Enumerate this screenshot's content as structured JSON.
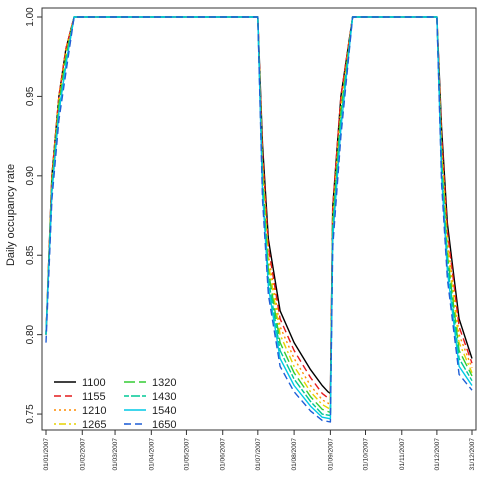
{
  "chart_data": {
    "type": "line",
    "title": "",
    "xlabel": "",
    "ylabel": "Daily occupancy rate",
    "ylim": [
      0.745,
      1.0
    ],
    "yticks": [
      0.75,
      0.8,
      0.85,
      0.9,
      0.95,
      1.0
    ],
    "ytick_labels": [
      "0.75",
      "0.80",
      "0.85",
      "0.90",
      "0.95",
      "1.00"
    ],
    "x_tick_labels": [
      "01/01/2007",
      "01/02/2007",
      "01/03/2007",
      "01/04/2007",
      "01/05/2007",
      "01/06/2007",
      "01/07/2007",
      "01/08/2007",
      "01/09/2007",
      "01/10/2007",
      "01/11/2007",
      "01/12/2007",
      "31/12/2007"
    ],
    "grid": false,
    "legend_position": "bottom-left",
    "series": [
      {
        "name": "1100",
        "color": "#000000",
        "dash": "solid",
        "points": [
          [
            "01/01/2007",
            0.8
          ],
          [
            "06/01/2007",
            0.9
          ],
          [
            "12/01/2007",
            0.95
          ],
          [
            "18/01/2007",
            0.98
          ],
          [
            "25/01/2007",
            1.0
          ],
          [
            "01/07/2007",
            1.0
          ],
          [
            "05/07/2007",
            0.92
          ],
          [
            "10/07/2007",
            0.86
          ],
          [
            "20/07/2007",
            0.815
          ],
          [
            "01/08/2007",
            0.795
          ],
          [
            "15/08/2007",
            0.778
          ],
          [
            "25/08/2007",
            0.768
          ],
          [
            "30/08/2007",
            0.764
          ],
          [
            "01/09/2007",
            0.763
          ],
          [
            "03/09/2007",
            0.88
          ],
          [
            "10/09/2007",
            0.95
          ],
          [
            "20/09/2007",
            1.0
          ],
          [
            "01/12/2007",
            1.0
          ],
          [
            "05/12/2007",
            0.93
          ],
          [
            "10/12/2007",
            0.87
          ],
          [
            "20/12/2007",
            0.81
          ],
          [
            "31/12/2007",
            0.785
          ]
        ]
      },
      {
        "name": "1155",
        "color": "#e41a1c",
        "dash": "dashed",
        "points": [
          [
            "01/01/2007",
            0.8
          ],
          [
            "06/01/2007",
            0.9
          ],
          [
            "12/01/2007",
            0.95
          ],
          [
            "18/01/2007",
            0.98
          ],
          [
            "25/01/2007",
            1.0
          ],
          [
            "01/07/2007",
            1.0
          ],
          [
            "05/07/2007",
            0.915
          ],
          [
            "10/07/2007",
            0.855
          ],
          [
            "20/07/2007",
            0.81
          ],
          [
            "01/08/2007",
            0.79
          ],
          [
            "15/08/2007",
            0.773
          ],
          [
            "25/08/2007",
            0.763
          ],
          [
            "01/09/2007",
            0.759
          ],
          [
            "03/09/2007",
            0.88
          ],
          [
            "10/09/2007",
            0.95
          ],
          [
            "20/09/2007",
            1.0
          ],
          [
            "01/12/2007",
            1.0
          ],
          [
            "05/12/2007",
            0.925
          ],
          [
            "10/12/2007",
            0.865
          ],
          [
            "20/12/2007",
            0.805
          ],
          [
            "31/12/2007",
            0.782
          ]
        ]
      },
      {
        "name": "1210",
        "color": "#ff8c00",
        "dash": "dotted",
        "points": [
          [
            "01/01/2007",
            0.8
          ],
          [
            "06/01/2007",
            0.9
          ],
          [
            "12/01/2007",
            0.95
          ],
          [
            "18/01/2007",
            0.98
          ],
          [
            "25/01/2007",
            1.0
          ],
          [
            "01/07/2007",
            1.0
          ],
          [
            "05/07/2007",
            0.91
          ],
          [
            "10/07/2007",
            0.85
          ],
          [
            "20/07/2007",
            0.805
          ],
          [
            "01/08/2007",
            0.785
          ],
          [
            "15/08/2007",
            0.768
          ],
          [
            "25/08/2007",
            0.759
          ],
          [
            "01/09/2007",
            0.756
          ],
          [
            "03/09/2007",
            0.875
          ],
          [
            "10/09/2007",
            0.945
          ],
          [
            "20/09/2007",
            1.0
          ],
          [
            "01/12/2007",
            1.0
          ],
          [
            "05/12/2007",
            0.92
          ],
          [
            "10/12/2007",
            0.86
          ],
          [
            "20/12/2007",
            0.8
          ],
          [
            "31/12/2007",
            0.779
          ]
        ]
      },
      {
        "name": "1265",
        "color": "#e6d200",
        "dash": "dotdash",
        "points": [
          [
            "01/01/2007",
            0.8
          ],
          [
            "06/01/2007",
            0.895
          ],
          [
            "12/01/2007",
            0.945
          ],
          [
            "18/01/2007",
            0.975
          ],
          [
            "25/01/2007",
            1.0
          ],
          [
            "01/07/2007",
            1.0
          ],
          [
            "05/07/2007",
            0.905
          ],
          [
            "10/07/2007",
            0.845
          ],
          [
            "20/07/2007",
            0.8
          ],
          [
            "01/08/2007",
            0.78
          ],
          [
            "15/08/2007",
            0.764
          ],
          [
            "25/08/2007",
            0.756
          ],
          [
            "01/09/2007",
            0.753
          ],
          [
            "03/09/2007",
            0.87
          ],
          [
            "10/09/2007",
            0.94
          ],
          [
            "20/09/2007",
            1.0
          ],
          [
            "01/12/2007",
            1.0
          ],
          [
            "05/12/2007",
            0.915
          ],
          [
            "10/12/2007",
            0.855
          ],
          [
            "20/12/2007",
            0.795
          ],
          [
            "31/12/2007",
            0.776
          ]
        ]
      },
      {
        "name": "1320",
        "color": "#33cc33",
        "dash": "longdash",
        "points": [
          [
            "01/01/2007",
            0.8
          ],
          [
            "06/01/2007",
            0.895
          ],
          [
            "12/01/2007",
            0.945
          ],
          [
            "18/01/2007",
            0.975
          ],
          [
            "25/01/2007",
            1.0
          ],
          [
            "01/07/2007",
            1.0
          ],
          [
            "05/07/2007",
            0.9
          ],
          [
            "10/07/2007",
            0.84
          ],
          [
            "20/07/2007",
            0.795
          ],
          [
            "01/08/2007",
            0.776
          ],
          [
            "15/08/2007",
            0.761
          ],
          [
            "25/08/2007",
            0.753
          ],
          [
            "01/09/2007",
            0.751
          ],
          [
            "03/09/2007",
            0.87
          ],
          [
            "10/09/2007",
            0.94
          ],
          [
            "20/09/2007",
            1.0
          ],
          [
            "01/12/2007",
            1.0
          ],
          [
            "05/12/2007",
            0.91
          ],
          [
            "10/12/2007",
            0.85
          ],
          [
            "20/12/2007",
            0.79
          ],
          [
            "31/12/2007",
            0.774
          ]
        ]
      },
      {
        "name": "1430",
        "color": "#00c896",
        "dash": "twodash",
        "points": [
          [
            "01/01/2007",
            0.8
          ],
          [
            "06/01/2007",
            0.89
          ],
          [
            "12/01/2007",
            0.94
          ],
          [
            "18/01/2007",
            0.97
          ],
          [
            "25/01/2007",
            1.0
          ],
          [
            "01/07/2007",
            1.0
          ],
          [
            "05/07/2007",
            0.895
          ],
          [
            "10/07/2007",
            0.835
          ],
          [
            "20/07/2007",
            0.79
          ],
          [
            "01/08/2007",
            0.772
          ],
          [
            "15/08/2007",
            0.758
          ],
          [
            "25/08/2007",
            0.75
          ],
          [
            "01/09/2007",
            0.749
          ],
          [
            "03/09/2007",
            0.865
          ],
          [
            "10/09/2007",
            0.935
          ],
          [
            "20/09/2007",
            1.0
          ],
          [
            "01/12/2007",
            1.0
          ],
          [
            "05/12/2007",
            0.905
          ],
          [
            "10/12/2007",
            0.845
          ],
          [
            "20/12/2007",
            0.785
          ],
          [
            "31/12/2007",
            0.771
          ]
        ]
      },
      {
        "name": "1540",
        "color": "#00c8e6",
        "dash": "solid",
        "points": [
          [
            "01/01/2007",
            0.8
          ],
          [
            "06/01/2007",
            0.89
          ],
          [
            "12/01/2007",
            0.94
          ],
          [
            "18/01/2007",
            0.97
          ],
          [
            "25/01/2007",
            1.0
          ],
          [
            "01/07/2007",
            1.0
          ],
          [
            "05/07/2007",
            0.89
          ],
          [
            "10/07/2007",
            0.83
          ],
          [
            "20/07/2007",
            0.785
          ],
          [
            "01/08/2007",
            0.768
          ],
          [
            "15/08/2007",
            0.755
          ],
          [
            "25/08/2007",
            0.748
          ],
          [
            "01/09/2007",
            0.747
          ],
          [
            "03/09/2007",
            0.86
          ],
          [
            "10/09/2007",
            0.93
          ],
          [
            "20/09/2007",
            1.0
          ],
          [
            "01/12/2007",
            1.0
          ],
          [
            "05/12/2007",
            0.9
          ],
          [
            "10/12/2007",
            0.84
          ],
          [
            "20/12/2007",
            0.78
          ],
          [
            "31/12/2007",
            0.768
          ]
        ]
      },
      {
        "name": "1650",
        "color": "#1f5fd6",
        "dash": "dashed",
        "points": [
          [
            "01/01/2007",
            0.795
          ],
          [
            "06/01/2007",
            0.885
          ],
          [
            "12/01/2007",
            0.935
          ],
          [
            "18/01/2007",
            0.965
          ],
          [
            "25/01/2007",
            1.0
          ],
          [
            "01/07/2007",
            1.0
          ],
          [
            "05/07/2007",
            0.885
          ],
          [
            "10/07/2007",
            0.825
          ],
          [
            "20/07/2007",
            0.78
          ],
          [
            "01/08/2007",
            0.764
          ],
          [
            "15/08/2007",
            0.752
          ],
          [
            "25/08/2007",
            0.746
          ],
          [
            "01/09/2007",
            0.745
          ],
          [
            "03/09/2007",
            0.855
          ],
          [
            "10/09/2007",
            0.925
          ],
          [
            "20/09/2007",
            1.0
          ],
          [
            "01/12/2007",
            1.0
          ],
          [
            "05/12/2007",
            0.895
          ],
          [
            "10/12/2007",
            0.835
          ],
          [
            "20/12/2007",
            0.775
          ],
          [
            "31/12/2007",
            0.765
          ]
        ]
      }
    ]
  }
}
